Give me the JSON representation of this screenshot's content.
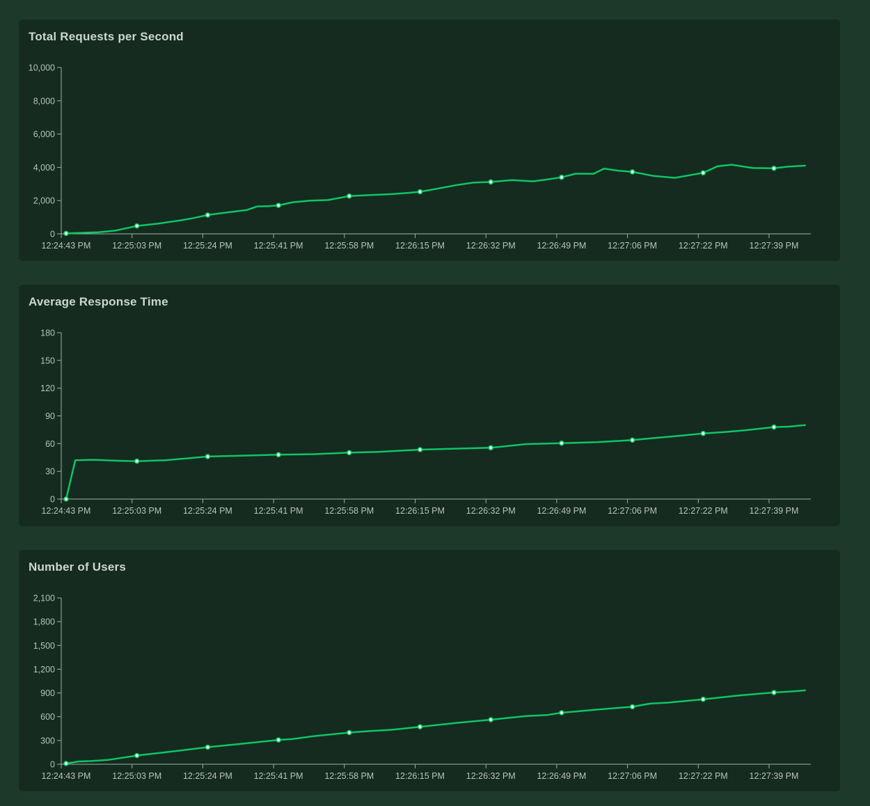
{
  "page": {
    "background": "#1d392a",
    "card_background": "#152b1f",
    "line_color": "#0fc564",
    "marker_fill": "#eaf8ef",
    "axis_color": "#9fb0a6",
    "tick_text_color": "#b7c3bb",
    "title_color": "#cbd7cf"
  },
  "chart_data": [
    {
      "type": "line",
      "title": "Total Requests per Second",
      "xlabel": "",
      "ylabel": "",
      "grid": false,
      "legend_position": "none",
      "x_axis_type": "time",
      "x_tick_labels": [
        "12:24:43 PM",
        "12:25:03 PM",
        "12:25:24 PM",
        "12:25:41 PM",
        "12:25:58 PM",
        "12:26:15 PM",
        "12:26:32 PM",
        "12:26:49 PM",
        "12:27:06 PM",
        "12:27:22 PM",
        "12:27:39 PM"
      ],
      "ylim": [
        0,
        10000
      ],
      "y_tick_labels": [
        "0",
        "2,000",
        "4,000",
        "6,000",
        "8,000",
        "10,000"
      ],
      "y_tick_values": [
        0,
        2000,
        4000,
        6000,
        8000,
        10000
      ],
      "values_at_ticks": [
        30,
        475,
        1135,
        1710,
        2270,
        2530,
        3120,
        3400,
        3730,
        3670,
        3940
      ],
      "line_points": [
        [
          0,
          30
        ],
        [
          0.2,
          60
        ],
        [
          0.45,
          95
        ],
        [
          0.7,
          200
        ],
        [
          1,
          475
        ],
        [
          1.3,
          620
        ],
        [
          1.6,
          800
        ],
        [
          1.8,
          950
        ],
        [
          2,
          1135
        ],
        [
          2.3,
          1300
        ],
        [
          2.55,
          1430
        ],
        [
          2.7,
          1650
        ],
        [
          2.85,
          1665
        ],
        [
          3,
          1710
        ],
        [
          3.2,
          1900
        ],
        [
          3.45,
          2000
        ],
        [
          3.7,
          2035
        ],
        [
          4,
          2270
        ],
        [
          4.3,
          2330
        ],
        [
          4.6,
          2390
        ],
        [
          4.85,
          2470
        ],
        [
          5,
          2530
        ],
        [
          5.25,
          2720
        ],
        [
          5.5,
          2920
        ],
        [
          5.75,
          3080
        ],
        [
          6,
          3120
        ],
        [
          6.3,
          3230
        ],
        [
          6.6,
          3160
        ],
        [
          6.8,
          3270
        ],
        [
          7,
          3400
        ],
        [
          7.2,
          3620
        ],
        [
          7.45,
          3610
        ],
        [
          7.6,
          3920
        ],
        [
          7.8,
          3800
        ],
        [
          8,
          3730
        ],
        [
          8.3,
          3480
        ],
        [
          8.6,
          3370
        ],
        [
          8.8,
          3520
        ],
        [
          9,
          3670
        ],
        [
          9.2,
          4060
        ],
        [
          9.4,
          4160
        ],
        [
          9.7,
          3960
        ],
        [
          10,
          3940
        ],
        [
          10.2,
          4040
        ],
        [
          10.44,
          4100
        ]
      ]
    },
    {
      "type": "line",
      "title": "Average Response Time",
      "xlabel": "",
      "ylabel": "",
      "grid": false,
      "legend_position": "none",
      "x_axis_type": "time",
      "x_tick_labels": [
        "12:24:43 PM",
        "12:25:03 PM",
        "12:25:24 PM",
        "12:25:41 PM",
        "12:25:58 PM",
        "12:26:15 PM",
        "12:26:32 PM",
        "12:26:49 PM",
        "12:27:06 PM",
        "12:27:22 PM",
        "12:27:39 PM"
      ],
      "ylim": [
        0,
        180
      ],
      "y_tick_labels": [
        "0",
        "30",
        "60",
        "90",
        "120",
        "150",
        "180"
      ],
      "y_tick_values": [
        0,
        30,
        60,
        90,
        120,
        150,
        180
      ],
      "values_at_ticks": [
        0,
        41,
        46,
        48,
        50.2,
        53.5,
        55.5,
        60.5,
        63.8,
        71,
        77.9
      ],
      "line_points": [
        [
          0,
          0
        ],
        [
          0.13,
          42
        ],
        [
          0.4,
          42.5
        ],
        [
          0.7,
          41.5
        ],
        [
          1,
          41
        ],
        [
          1.4,
          42
        ],
        [
          1.7,
          44
        ],
        [
          2,
          46
        ],
        [
          2.5,
          47
        ],
        [
          3,
          48
        ],
        [
          3.5,
          48.6
        ],
        [
          3.8,
          49.5
        ],
        [
          4,
          50.2
        ],
        [
          4.4,
          51
        ],
        [
          4.7,
          52.3
        ],
        [
          5,
          53.5
        ],
        [
          5.5,
          54.5
        ],
        [
          6,
          55.5
        ],
        [
          6.2,
          57
        ],
        [
          6.5,
          59.5
        ],
        [
          7,
          60.5
        ],
        [
          7.5,
          61.5
        ],
        [
          8,
          63.8
        ],
        [
          8.3,
          66
        ],
        [
          8.6,
          68
        ],
        [
          9,
          71
        ],
        [
          9.3,
          72.5
        ],
        [
          9.6,
          74.5
        ],
        [
          10,
          77.9
        ],
        [
          10.2,
          78.3
        ],
        [
          10.44,
          80
        ]
      ]
    },
    {
      "type": "line",
      "title": "Number of Users",
      "xlabel": "",
      "ylabel": "",
      "grid": false,
      "legend_position": "none",
      "x_axis_type": "time",
      "x_tick_labels": [
        "12:24:43 PM",
        "12:25:03 PM",
        "12:25:24 PM",
        "12:25:41 PM",
        "12:25:58 PM",
        "12:26:15 PM",
        "12:26:32 PM",
        "12:26:49 PM",
        "12:27:06 PM",
        "12:27:22 PM",
        "12:27:39 PM"
      ],
      "ylim": [
        0,
        2100
      ],
      "y_tick_labels": [
        "0",
        "300",
        "600",
        "900",
        "1,200",
        "1,500",
        "1,800",
        "2,100"
      ],
      "y_tick_values": [
        0,
        300,
        600,
        900,
        1200,
        1500,
        1800,
        2100
      ],
      "values_at_ticks": [
        10,
        110,
        215,
        307,
        400,
        473,
        562,
        650,
        726,
        820,
        906
      ],
      "line_points": [
        [
          0,
          10
        ],
        [
          0.18,
          35
        ],
        [
          0.35,
          40
        ],
        [
          0.6,
          55
        ],
        [
          1,
          110
        ],
        [
          1.5,
          162
        ],
        [
          2,
          215
        ],
        [
          2.5,
          260
        ],
        [
          3,
          307
        ],
        [
          3.2,
          318
        ],
        [
          3.5,
          355
        ],
        [
          4,
          400
        ],
        [
          4.3,
          420
        ],
        [
          4.6,
          435
        ],
        [
          5,
          473
        ],
        [
          5.5,
          520
        ],
        [
          6,
          562
        ],
        [
          6.5,
          608
        ],
        [
          6.8,
          622
        ],
        [
          7,
          650
        ],
        [
          7.5,
          690
        ],
        [
          8,
          726
        ],
        [
          8.25,
          765
        ],
        [
          8.5,
          778
        ],
        [
          9,
          820
        ],
        [
          9.5,
          868
        ],
        [
          10,
          906
        ],
        [
          10.2,
          916
        ],
        [
          10.44,
          932
        ]
      ]
    }
  ]
}
